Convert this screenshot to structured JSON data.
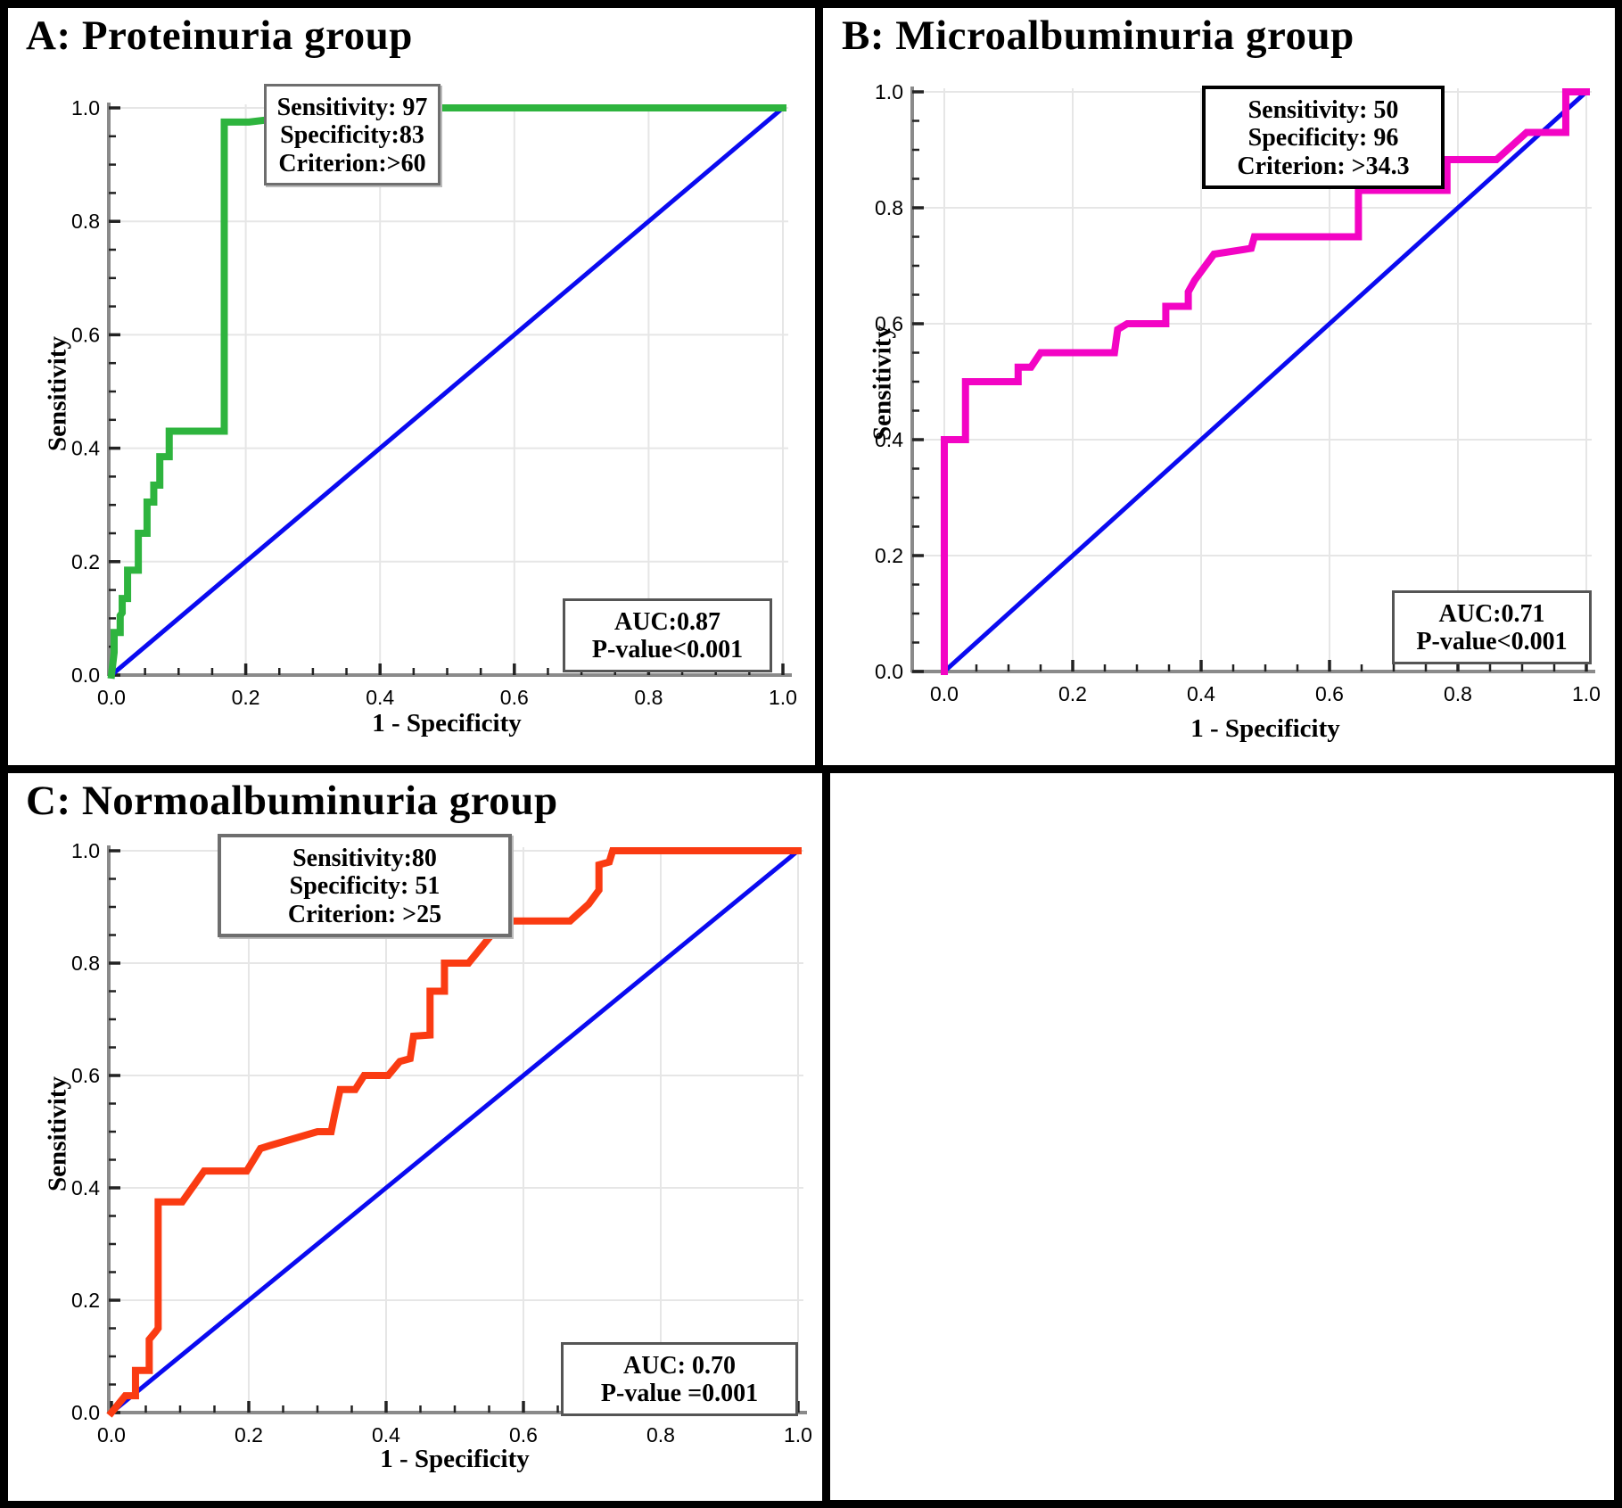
{
  "figure": {
    "background": "#ffffff",
    "border_color": "#000000"
  },
  "chart_data": [
    {
      "panel": "A",
      "type": "line",
      "title": "A: Proteinuria group",
      "xlabel": "1 - Specificity",
      "ylabel": "Sensitivity",
      "xlim": [
        0,
        1
      ],
      "ylim": [
        0,
        1
      ],
      "grid": true,
      "x_tick_labels": [
        "0.0",
        "0.2",
        "0.4",
        "0.6",
        "0.8",
        "1.0"
      ],
      "y_tick_labels": [
        "0.0",
        "0.2",
        "0.4",
        "0.6",
        "0.8",
        "1.0"
      ],
      "series": [
        {
          "name": "ROC curve",
          "color": "#2eb43e",
          "points": [
            [
              0,
              0
            ],
            [
              0.004,
              0.04
            ],
            [
              0.004,
              0.075
            ],
            [
              0.013,
              0.075
            ],
            [
              0.013,
              0.105
            ],
            [
              0.016,
              0.11
            ],
            [
              0.016,
              0.135
            ],
            [
              0.024,
              0.135
            ],
            [
              0.024,
              0.185
            ],
            [
              0.04,
              0.185
            ],
            [
              0.04,
              0.25
            ],
            [
              0.053,
              0.25
            ],
            [
              0.053,
              0.305
            ],
            [
              0.063,
              0.305
            ],
            [
              0.063,
              0.335
            ],
            [
              0.072,
              0.335
            ],
            [
              0.072,
              0.385
            ],
            [
              0.086,
              0.385
            ],
            [
              0.086,
              0.43
            ],
            [
              0.168,
              0.43
            ],
            [
              0.168,
              0.975
            ],
            [
              0.205,
              0.975
            ],
            [
              0.24,
              0.98
            ],
            [
              0.285,
              1.0
            ],
            [
              1,
              1
            ]
          ]
        },
        {
          "name": "Reference diagonal",
          "color": "#0a0af0",
          "points": [
            [
              0,
              0
            ],
            [
              1,
              1
            ]
          ]
        }
      ],
      "annotations": {
        "criterion_lines": [
          "Sensitivity: 97",
          "Specificity:83",
          "Criterion:>60"
        ],
        "auc_lines": [
          "AUC:0.87",
          "P-value<0.001"
        ],
        "operating_point": {
          "sensitivity": 97,
          "specificity": 83,
          "criterion": ">60"
        },
        "auc": 0.87,
        "p_value": "<0.001"
      }
    },
    {
      "panel": "B",
      "type": "line",
      "title": "B: Microalbuminuria group",
      "xlabel": "1 - Specificity",
      "ylabel": "Sensitivity",
      "xlim": [
        0,
        1
      ],
      "ylim": [
        0,
        1
      ],
      "grid": true,
      "x_tick_labels": [
        "0.0",
        "0.2",
        "0.4",
        "0.6",
        "0.8",
        "1.0"
      ],
      "y_tick_labels": [
        "0.0",
        "0.2",
        "0.4",
        "0.6",
        "0.8",
        "1.0"
      ],
      "series": [
        {
          "name": "ROC curve",
          "color": "#f304c4",
          "points": [
            [
              0,
              0
            ],
            [
              0,
              0.4
            ],
            [
              0.033,
              0.4
            ],
            [
              0.033,
              0.5
            ],
            [
              0.115,
              0.5
            ],
            [
              0.115,
              0.525
            ],
            [
              0.135,
              0.525
            ],
            [
              0.15,
              0.55
            ],
            [
              0.265,
              0.55
            ],
            [
              0.27,
              0.59
            ],
            [
              0.285,
              0.6
            ],
            [
              0.345,
              0.6
            ],
            [
              0.345,
              0.63
            ],
            [
              0.38,
              0.63
            ],
            [
              0.38,
              0.655
            ],
            [
              0.39,
              0.675
            ],
            [
              0.42,
              0.72
            ],
            [
              0.478,
              0.73
            ],
            [
              0.483,
              0.75
            ],
            [
              0.645,
              0.75
            ],
            [
              0.645,
              0.83
            ],
            [
              0.783,
              0.83
            ],
            [
              0.783,
              0.883
            ],
            [
              0.86,
              0.883
            ],
            [
              0.907,
              0.93
            ],
            [
              0.968,
              0.93
            ],
            [
              0.968,
              1.0
            ],
            [
              1,
              1
            ]
          ]
        },
        {
          "name": "Reference diagonal",
          "color": "#0a0af0",
          "points": [
            [
              0,
              0
            ],
            [
              1,
              1
            ]
          ]
        }
      ],
      "annotations": {
        "criterion_lines": [
          "Sensitivity: 50",
          "Specificity: 96",
          "Criterion: >34.3"
        ],
        "auc_lines": [
          "AUC:0.71",
          "P-value<0.001"
        ],
        "operating_point": {
          "sensitivity": 50,
          "specificity": 96,
          "criterion": ">34.3"
        },
        "auc": 0.71,
        "p_value": "<0.001"
      }
    },
    {
      "panel": "C",
      "type": "line",
      "title": "C: Normoalbuminuria group",
      "xlabel": "1 - Specificity",
      "ylabel": "Sensitivity",
      "xlim": [
        0,
        1
      ],
      "ylim": [
        0,
        1
      ],
      "grid": true,
      "x_tick_labels": [
        "0.0",
        "0.2",
        "0.4",
        "0.6",
        "0.8",
        "1.0"
      ],
      "y_tick_labels": [
        "0.0",
        "0.2",
        "0.4",
        "0.6",
        "0.8",
        "1.0"
      ],
      "series": [
        {
          "name": "ROC curve",
          "color": "#fa3b12",
          "points": [
            [
              0,
              0
            ],
            [
              0.02,
              0.03
            ],
            [
              0.035,
              0.03
            ],
            [
              0.035,
              0.075
            ],
            [
              0.055,
              0.075
            ],
            [
              0.055,
              0.13
            ],
            [
              0.065,
              0.145
            ],
            [
              0.068,
              0.15
            ],
            [
              0.068,
              0.375
            ],
            [
              0.103,
              0.375
            ],
            [
              0.135,
              0.43
            ],
            [
              0.197,
              0.43
            ],
            [
              0.217,
              0.47
            ],
            [
              0.23,
              0.475
            ],
            [
              0.3,
              0.5
            ],
            [
              0.32,
              0.5
            ],
            [
              0.325,
              0.53
            ],
            [
              0.333,
              0.575
            ],
            [
              0.355,
              0.575
            ],
            [
              0.368,
              0.6
            ],
            [
              0.403,
              0.6
            ],
            [
              0.42,
              0.625
            ],
            [
              0.435,
              0.63
            ],
            [
              0.44,
              0.67
            ],
            [
              0.464,
              0.672
            ],
            [
              0.464,
              0.75
            ],
            [
              0.485,
              0.75
            ],
            [
              0.485,
              0.8
            ],
            [
              0.52,
              0.8
            ],
            [
              0.57,
              0.875
            ],
            [
              0.668,
              0.875
            ],
            [
              0.695,
              0.905
            ],
            [
              0.71,
              0.93
            ],
            [
              0.71,
              0.975
            ],
            [
              0.725,
              0.98
            ],
            [
              0.73,
              1.0
            ],
            [
              1,
              1
            ]
          ]
        },
        {
          "name": "Reference diagonal",
          "color": "#0a0af0",
          "points": [
            [
              0,
              0
            ],
            [
              1,
              1
            ]
          ]
        }
      ],
      "annotations": {
        "criterion_lines": [
          "Sensitivity:80",
          "Specificity: 51",
          "Criterion: >25"
        ],
        "auc_lines": [
          "AUC: 0.70",
          "P-value =0.001"
        ],
        "operating_point": {
          "sensitivity": 80,
          "specificity": 51,
          "criterion": ">25"
        },
        "auc": 0.7,
        "p_value": "=0.001"
      }
    }
  ]
}
